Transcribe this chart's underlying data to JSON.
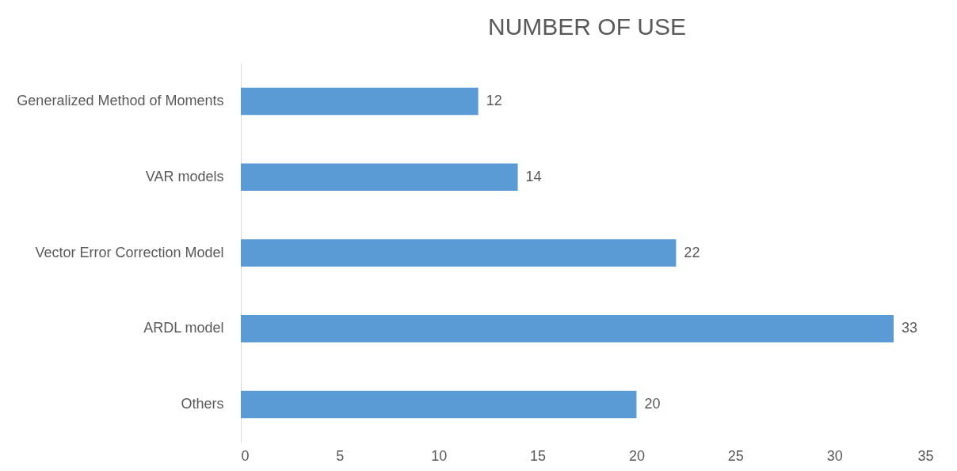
{
  "chart_data": {
    "type": "bar",
    "orientation": "horizontal",
    "title": "NUMBER OF USE",
    "categories": [
      "Generalized Method of Moments",
      "VAR models",
      "Vector Error Correction Model",
      "ARDL model",
      "Others"
    ],
    "values": [
      12,
      14,
      22,
      33,
      20
    ],
    "color": "#5b9bd5",
    "xlim": [
      0,
      35
    ],
    "xticks": [
      0,
      5,
      10,
      15,
      20,
      25,
      30,
      35
    ],
    "grid": false,
    "data_labels": true
  }
}
